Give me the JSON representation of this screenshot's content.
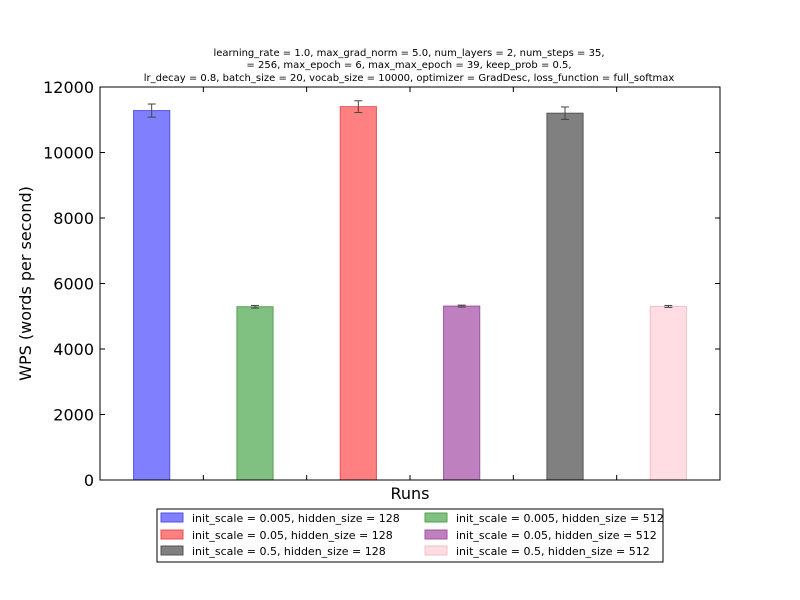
{
  "chart_data": {
    "type": "bar",
    "title_lines": [
      "learning_rate = 1.0, max_grad_norm = 5.0, num_layers = 2, num_steps = 35,",
      "= 256, max_epoch = 6, max_max_epoch = 39, keep_prob = 0.5,",
      "lr_decay = 0.8, batch_size = 20, vocab_size = 10000, optimizer = GradDesc, loss_function = full_softmax"
    ],
    "xlabel": "Runs",
    "ylabel": "WPS (words per second)",
    "ylim": [
      0,
      12000
    ],
    "yticks": [
      0,
      2000,
      4000,
      6000,
      8000,
      10000,
      12000
    ],
    "xlim": [
      0,
      6
    ],
    "xticks": [
      1,
      2,
      3,
      4,
      5
    ],
    "bar_positions": [
      0.5,
      1.5,
      2.5,
      3.5,
      4.5,
      5.5
    ],
    "bar_width": 0.35,
    "grid": false,
    "legend_position": "below",
    "legend_columns": 2,
    "series": [
      {
        "name": "init_scale = 0.005, hidden_size = 128",
        "value": 11280,
        "error": 200,
        "color": "#8080ff",
        "edge": "#5555dd"
      },
      {
        "name": "init_scale = 0.005, hidden_size = 512",
        "value": 5290,
        "error": 40,
        "color": "#80c080",
        "edge": "#55a055"
      },
      {
        "name": "init_scale = 0.05, hidden_size = 128",
        "value": 11400,
        "error": 180,
        "color": "#ff8080",
        "edge": "#dd5555"
      },
      {
        "name": "init_scale = 0.05, hidden_size = 512",
        "value": 5310,
        "error": 30,
        "color": "#bf80bf",
        "edge": "#9f559f"
      },
      {
        "name": "init_scale = 0.5, hidden_size = 128",
        "value": 11200,
        "error": 190,
        "color": "#808080",
        "edge": "#555555"
      },
      {
        "name": "init_scale = 0.5, hidden_size = 512",
        "value": 5300,
        "error": 30,
        "color": "#ffdde2",
        "edge": "#f0c0c8"
      }
    ]
  }
}
